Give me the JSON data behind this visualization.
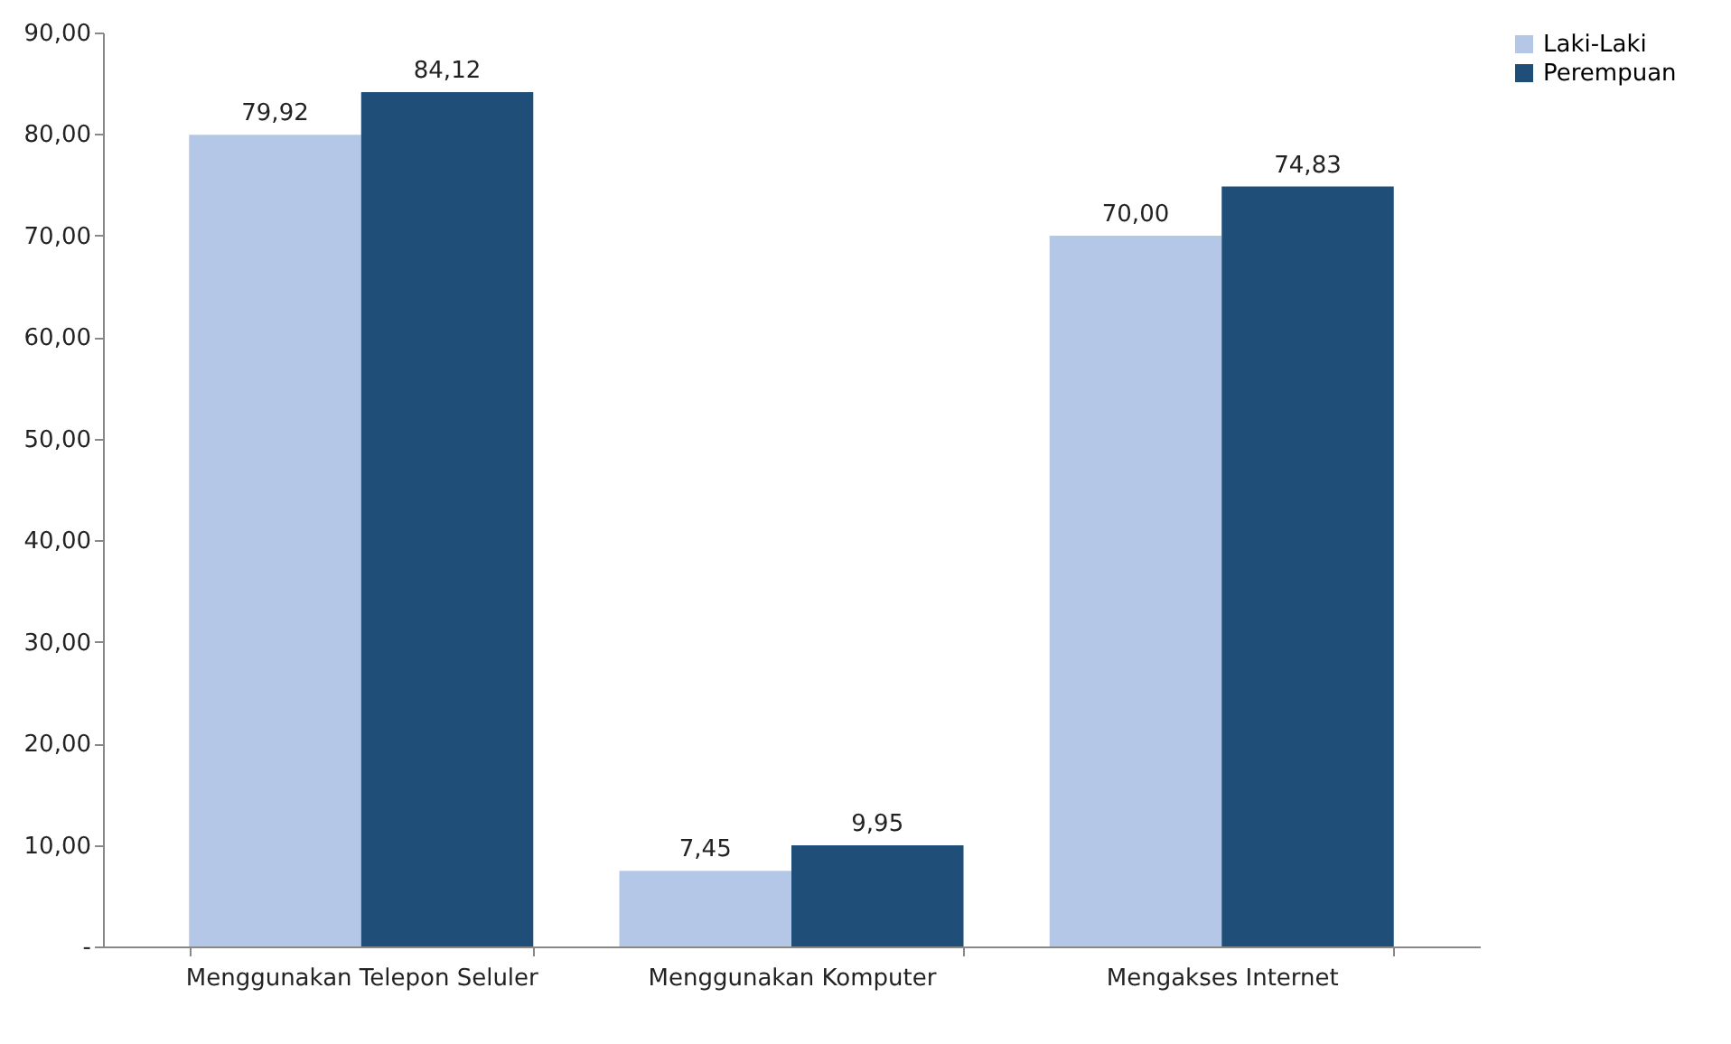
{
  "chart_data": {
    "type": "bar",
    "categories": [
      "Menggunakan Telepon Seluler",
      "Menggunakan Komputer",
      "Mengakses Internet"
    ],
    "series": [
      {
        "name": "Laki-Laki",
        "color": "#b4c7e7",
        "values": [
          79.92,
          7.45,
          70.0
        ],
        "value_labels": [
          "79,92",
          "7,45",
          "70,00"
        ]
      },
      {
        "name": "Perempuan",
        "color": "#1f4e79",
        "values": [
          84.12,
          9.95,
          74.83
        ],
        "value_labels": [
          "84,12",
          "9,95",
          "74,83"
        ]
      }
    ],
    "ylim": [
      0,
      90
    ],
    "yticks": [
      {
        "value": 0,
        "label": "-"
      },
      {
        "value": 10,
        "label": "10,00"
      },
      {
        "value": 20,
        "label": "20,00"
      },
      {
        "value": 30,
        "label": "30,00"
      },
      {
        "value": 40,
        "label": "40,00"
      },
      {
        "value": 50,
        "label": "50,00"
      },
      {
        "value": 60,
        "label": "60,00"
      },
      {
        "value": 70,
        "label": "70,00"
      },
      {
        "value": 80,
        "label": "80,00"
      },
      {
        "value": 90,
        "label": "90,00"
      }
    ],
    "grid": false,
    "legend": "right"
  }
}
